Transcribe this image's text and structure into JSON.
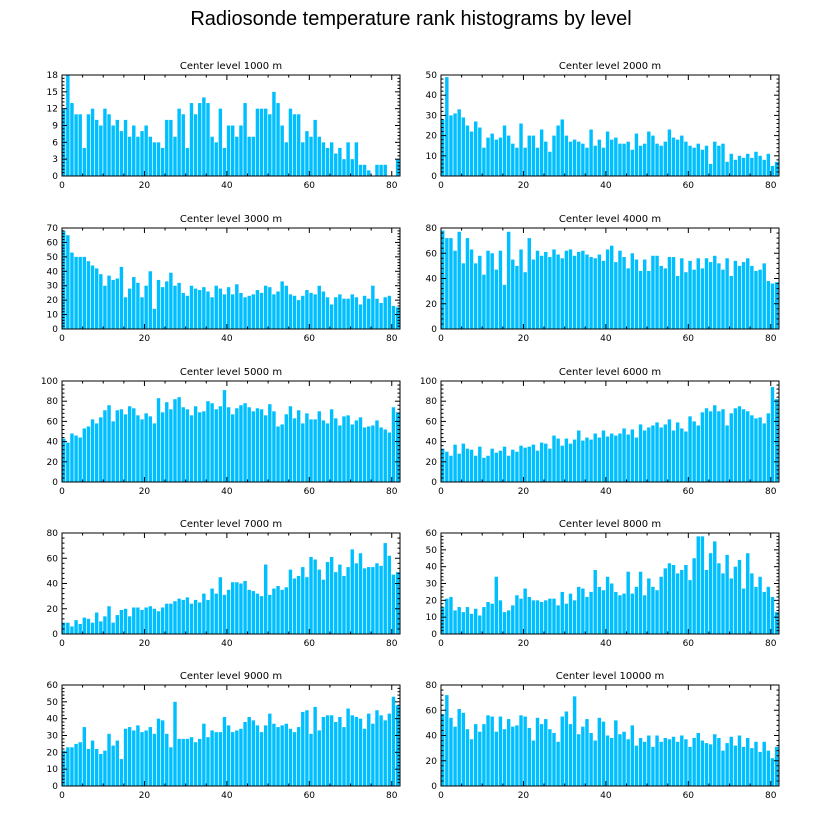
{
  "figure": {
    "title": "Radiosonde temperature rank histograms by level",
    "bar_color": "#00BFFF",
    "axis_color": "#000000"
  },
  "chart_data": [
    {
      "type": "bar",
      "title": "Center level 1000 m",
      "x_start": 0,
      "xlim": [
        0,
        82
      ],
      "ylim": [
        0,
        18
      ],
      "xticks": [
        0,
        20,
        40,
        60,
        80
      ],
      "yticks": [
        0,
        3,
        6,
        9,
        12,
        15,
        18
      ],
      "values": [
        12,
        18,
        13,
        11,
        11,
        5,
        11,
        12,
        10,
        9,
        12,
        11,
        9,
        10,
        8,
        10,
        7,
        9,
        7,
        8,
        9,
        7,
        6,
        6,
        5,
        10,
        10,
        7,
        12,
        11,
        5,
        13,
        11,
        13,
        14,
        13,
        7,
        6,
        12,
        5,
        9,
        9,
        7,
        9,
        13,
        7,
        7,
        12,
        12,
        12,
        11,
        15,
        13,
        9,
        6,
        12,
        11,
        11,
        6,
        8,
        7,
        10,
        7,
        6,
        5,
        6,
        4,
        5,
        3,
        6,
        3,
        6,
        2,
        2,
        1,
        0,
        2,
        2,
        2,
        0,
        0,
        3
      ]
    },
    {
      "type": "bar",
      "title": "Center level 2000 m",
      "x_start": 0,
      "xlim": [
        0,
        82
      ],
      "ylim": [
        0,
        50
      ],
      "xticks": [
        0,
        20,
        40,
        60,
        80
      ],
      "yticks": [
        0,
        10,
        20,
        30,
        40,
        50
      ],
      "values": [
        28,
        49,
        30,
        31,
        33,
        29,
        25,
        22,
        27,
        24,
        14,
        19,
        21,
        18,
        19,
        25,
        20,
        16,
        14,
        26,
        14,
        20,
        20,
        14,
        23,
        17,
        12,
        20,
        25,
        28,
        20,
        17,
        18,
        17,
        16,
        14,
        23,
        15,
        18,
        14,
        22,
        18,
        19,
        16,
        16,
        17,
        13,
        21,
        15,
        16,
        22,
        20,
        16,
        15,
        17,
        23,
        19,
        18,
        20,
        17,
        15,
        14,
        16,
        13,
        15,
        6,
        17,
        15,
        16,
        7,
        11,
        8,
        10,
        9,
        11,
        9,
        12,
        10,
        8,
        11,
        5,
        7
      ]
    },
    {
      "type": "bar",
      "title": "Center level 3000 m",
      "x_start": 0,
      "xlim": [
        0,
        82
      ],
      "ylim": [
        0,
        70
      ],
      "xticks": [
        0,
        20,
        40,
        60,
        80
      ],
      "yticks": [
        0,
        10,
        20,
        30,
        40,
        50,
        60,
        70
      ],
      "values": [
        68,
        65,
        53,
        50,
        50,
        50,
        47,
        44,
        42,
        38,
        30,
        37,
        34,
        35,
        43,
        22,
        28,
        36,
        32,
        22,
        30,
        40,
        14,
        34,
        29,
        33,
        39,
        30,
        32,
        25,
        23,
        30,
        28,
        27,
        29,
        26,
        22,
        30,
        28,
        24,
        29,
        24,
        31,
        25,
        22,
        23,
        24,
        27,
        25,
        30,
        29,
        24,
        26,
        33,
        30,
        24,
        23,
        20,
        23,
        27,
        25,
        24,
        30,
        26,
        22,
        17,
        22,
        24,
        21,
        21,
        24,
        22,
        17,
        23,
        21,
        30,
        21,
        18,
        22,
        23,
        16,
        15
      ]
    },
    {
      "type": "bar",
      "title": "Center level 4000 m",
      "x_start": 0,
      "xlim": [
        0,
        82
      ],
      "ylim": [
        0,
        80
      ],
      "xticks": [
        0,
        20,
        40,
        60,
        80
      ],
      "yticks": [
        0,
        20,
        40,
        60,
        80
      ],
      "values": [
        78,
        72,
        72,
        62,
        77,
        52,
        72,
        63,
        52,
        58,
        43,
        62,
        60,
        47,
        62,
        35,
        77,
        55,
        50,
        63,
        45,
        72,
        55,
        62,
        58,
        61,
        57,
        63,
        59,
        56,
        62,
        63,
        58,
        61,
        62,
        59,
        57,
        56,
        59,
        54,
        63,
        66,
        53,
        62,
        57,
        48,
        60,
        55,
        46,
        55,
        46,
        58,
        58,
        50,
        48,
        57,
        57,
        42,
        56,
        45,
        54,
        47,
        56,
        48,
        56,
        53,
        58,
        52,
        47,
        56,
        42,
        54,
        50,
        53,
        56,
        50,
        46,
        47,
        52,
        38,
        36,
        37
      ]
    },
    {
      "type": "bar",
      "title": "Center level 5000 m",
      "x_start": 0,
      "xlim": [
        0,
        82
      ],
      "ylim": [
        0,
        100
      ],
      "xticks": [
        0,
        20,
        40,
        60,
        80
      ],
      "yticks": [
        0,
        20,
        40,
        60,
        80,
        100
      ],
      "values": [
        43,
        39,
        48,
        46,
        44,
        53,
        55,
        62,
        58,
        64,
        71,
        76,
        60,
        71,
        72,
        67,
        75,
        73,
        66,
        62,
        68,
        65,
        58,
        83,
        69,
        79,
        72,
        82,
        84,
        74,
        72,
        66,
        75,
        69,
        70,
        80,
        78,
        72,
        75,
        91,
        74,
        67,
        73,
        76,
        78,
        74,
        70,
        73,
        72,
        66,
        77,
        70,
        55,
        57,
        67,
        75,
        63,
        71,
        58,
        68,
        62,
        62,
        70,
        61,
        58,
        72,
        63,
        56,
        65,
        66,
        57,
        61,
        64,
        54,
        55,
        56,
        61,
        54,
        52,
        49,
        74,
        69
      ]
    },
    {
      "type": "bar",
      "title": "Center level 6000 m",
      "x_start": 0,
      "xlim": [
        0,
        82
      ],
      "ylim": [
        0,
        100
      ],
      "xticks": [
        0,
        20,
        40,
        60,
        80
      ],
      "yticks": [
        0,
        20,
        40,
        60,
        80,
        100
      ],
      "values": [
        33,
        30,
        26,
        37,
        28,
        38,
        33,
        32,
        26,
        35,
        24,
        26,
        33,
        29,
        31,
        35,
        26,
        32,
        30,
        36,
        34,
        35,
        37,
        31,
        39,
        38,
        33,
        46,
        43,
        36,
        43,
        38,
        42,
        51,
        41,
        44,
        42,
        48,
        44,
        51,
        45,
        48,
        46,
        48,
        53,
        47,
        52,
        44,
        57,
        51,
        54,
        56,
        59,
        54,
        57,
        62,
        51,
        59,
        53,
        50,
        65,
        60,
        56,
        69,
        73,
        70,
        76,
        70,
        72,
        56,
        68,
        73,
        75,
        72,
        70,
        66,
        63,
        64,
        58,
        68,
        94,
        82
      ]
    },
    {
      "type": "bar",
      "title": "Center level 7000 m",
      "x_start": 0,
      "xlim": [
        0,
        82
      ],
      "ylim": [
        0,
        80
      ],
      "xticks": [
        0,
        20,
        40,
        60,
        80
      ],
      "yticks": [
        0,
        20,
        40,
        60,
        80
      ],
      "values": [
        9,
        9,
        6,
        11,
        8,
        13,
        12,
        9,
        17,
        10,
        14,
        22,
        9,
        15,
        19,
        20,
        14,
        21,
        21,
        19,
        21,
        22,
        20,
        18,
        21,
        24,
        24,
        26,
        28,
        27,
        29,
        24,
        27,
        25,
        32,
        27,
        36,
        32,
        45,
        31,
        35,
        41,
        41,
        40,
        42,
        35,
        34,
        32,
        30,
        55,
        31,
        36,
        38,
        35,
        37,
        51,
        44,
        46,
        53,
        45,
        61,
        59,
        51,
        43,
        57,
        61,
        49,
        55,
        46,
        53,
        67,
        56,
        64,
        52,
        53,
        53,
        56,
        54,
        72,
        62,
        47,
        49
      ]
    },
    {
      "type": "bar",
      "title": "Center level 8000 m",
      "x_start": 0,
      "xlim": [
        0,
        82
      ],
      "ylim": [
        0,
        60
      ],
      "xticks": [
        0,
        20,
        40,
        60,
        80
      ],
      "yticks": [
        0,
        10,
        20,
        30,
        40,
        50,
        60
      ],
      "values": [
        16,
        21,
        22,
        14,
        16,
        13,
        16,
        12,
        15,
        11,
        16,
        19,
        18,
        34,
        20,
        13,
        14,
        17,
        23,
        21,
        27,
        22,
        20,
        20,
        19,
        20,
        21,
        21,
        17,
        25,
        18,
        24,
        20,
        28,
        27,
        22,
        25,
        38,
        28,
        26,
        34,
        30,
        25,
        23,
        24,
        37,
        24,
        28,
        37,
        23,
        33,
        28,
        26,
        34,
        39,
        42,
        41,
        36,
        38,
        41,
        32,
        45,
        58,
        58,
        38,
        48,
        55,
        42,
        36,
        47,
        33,
        40,
        44,
        27,
        48,
        36,
        28,
        34,
        25,
        28,
        22,
        13
      ]
    },
    {
      "type": "bar",
      "title": "Center level 9000 m",
      "x_start": 0,
      "xlim": [
        0,
        82
      ],
      "ylim": [
        0,
        60
      ],
      "xticks": [
        0,
        20,
        40,
        60,
        80
      ],
      "yticks": [
        0,
        10,
        20,
        30,
        40,
        50,
        60
      ],
      "values": [
        21,
        23,
        23,
        25,
        26,
        35,
        22,
        27,
        22,
        19,
        21,
        31,
        24,
        27,
        16,
        34,
        35,
        33,
        36,
        32,
        33,
        35,
        31,
        40,
        39,
        31,
        23,
        50,
        28,
        28,
        28,
        29,
        26,
        28,
        37,
        29,
        33,
        32,
        32,
        41,
        36,
        32,
        33,
        34,
        38,
        41,
        39,
        36,
        32,
        36,
        43,
        37,
        35,
        36,
        37,
        34,
        32,
        35,
        44,
        45,
        31,
        47,
        33,
        41,
        42,
        42,
        38,
        41,
        35,
        46,
        42,
        41,
        40,
        34,
        43,
        37,
        45,
        42,
        39,
        43,
        53,
        48
      ]
    },
    {
      "type": "bar",
      "title": "Center level 10000 m",
      "x_start": 0,
      "xlim": [
        0,
        82
      ],
      "ylim": [
        0,
        80
      ],
      "xticks": [
        0,
        20,
        40,
        60,
        80
      ],
      "yticks": [
        0,
        20,
        40,
        60,
        80
      ],
      "values": [
        57,
        72,
        54,
        47,
        61,
        58,
        45,
        37,
        49,
        43,
        49,
        56,
        55,
        43,
        55,
        45,
        53,
        47,
        48,
        56,
        55,
        46,
        36,
        54,
        49,
        53,
        45,
        42,
        35,
        55,
        59,
        49,
        71,
        41,
        47,
        53,
        42,
        36,
        54,
        51,
        40,
        38,
        52,
        41,
        43,
        37,
        48,
        32,
        38,
        35,
        40,
        31,
        40,
        35,
        38,
        37,
        39,
        35,
        40,
        37,
        31,
        38,
        42,
        36,
        34,
        33,
        41,
        38,
        28,
        34,
        39,
        32,
        40,
        31,
        38,
        30,
        35,
        27,
        35,
        28,
        22,
        31
      ]
    }
  ]
}
